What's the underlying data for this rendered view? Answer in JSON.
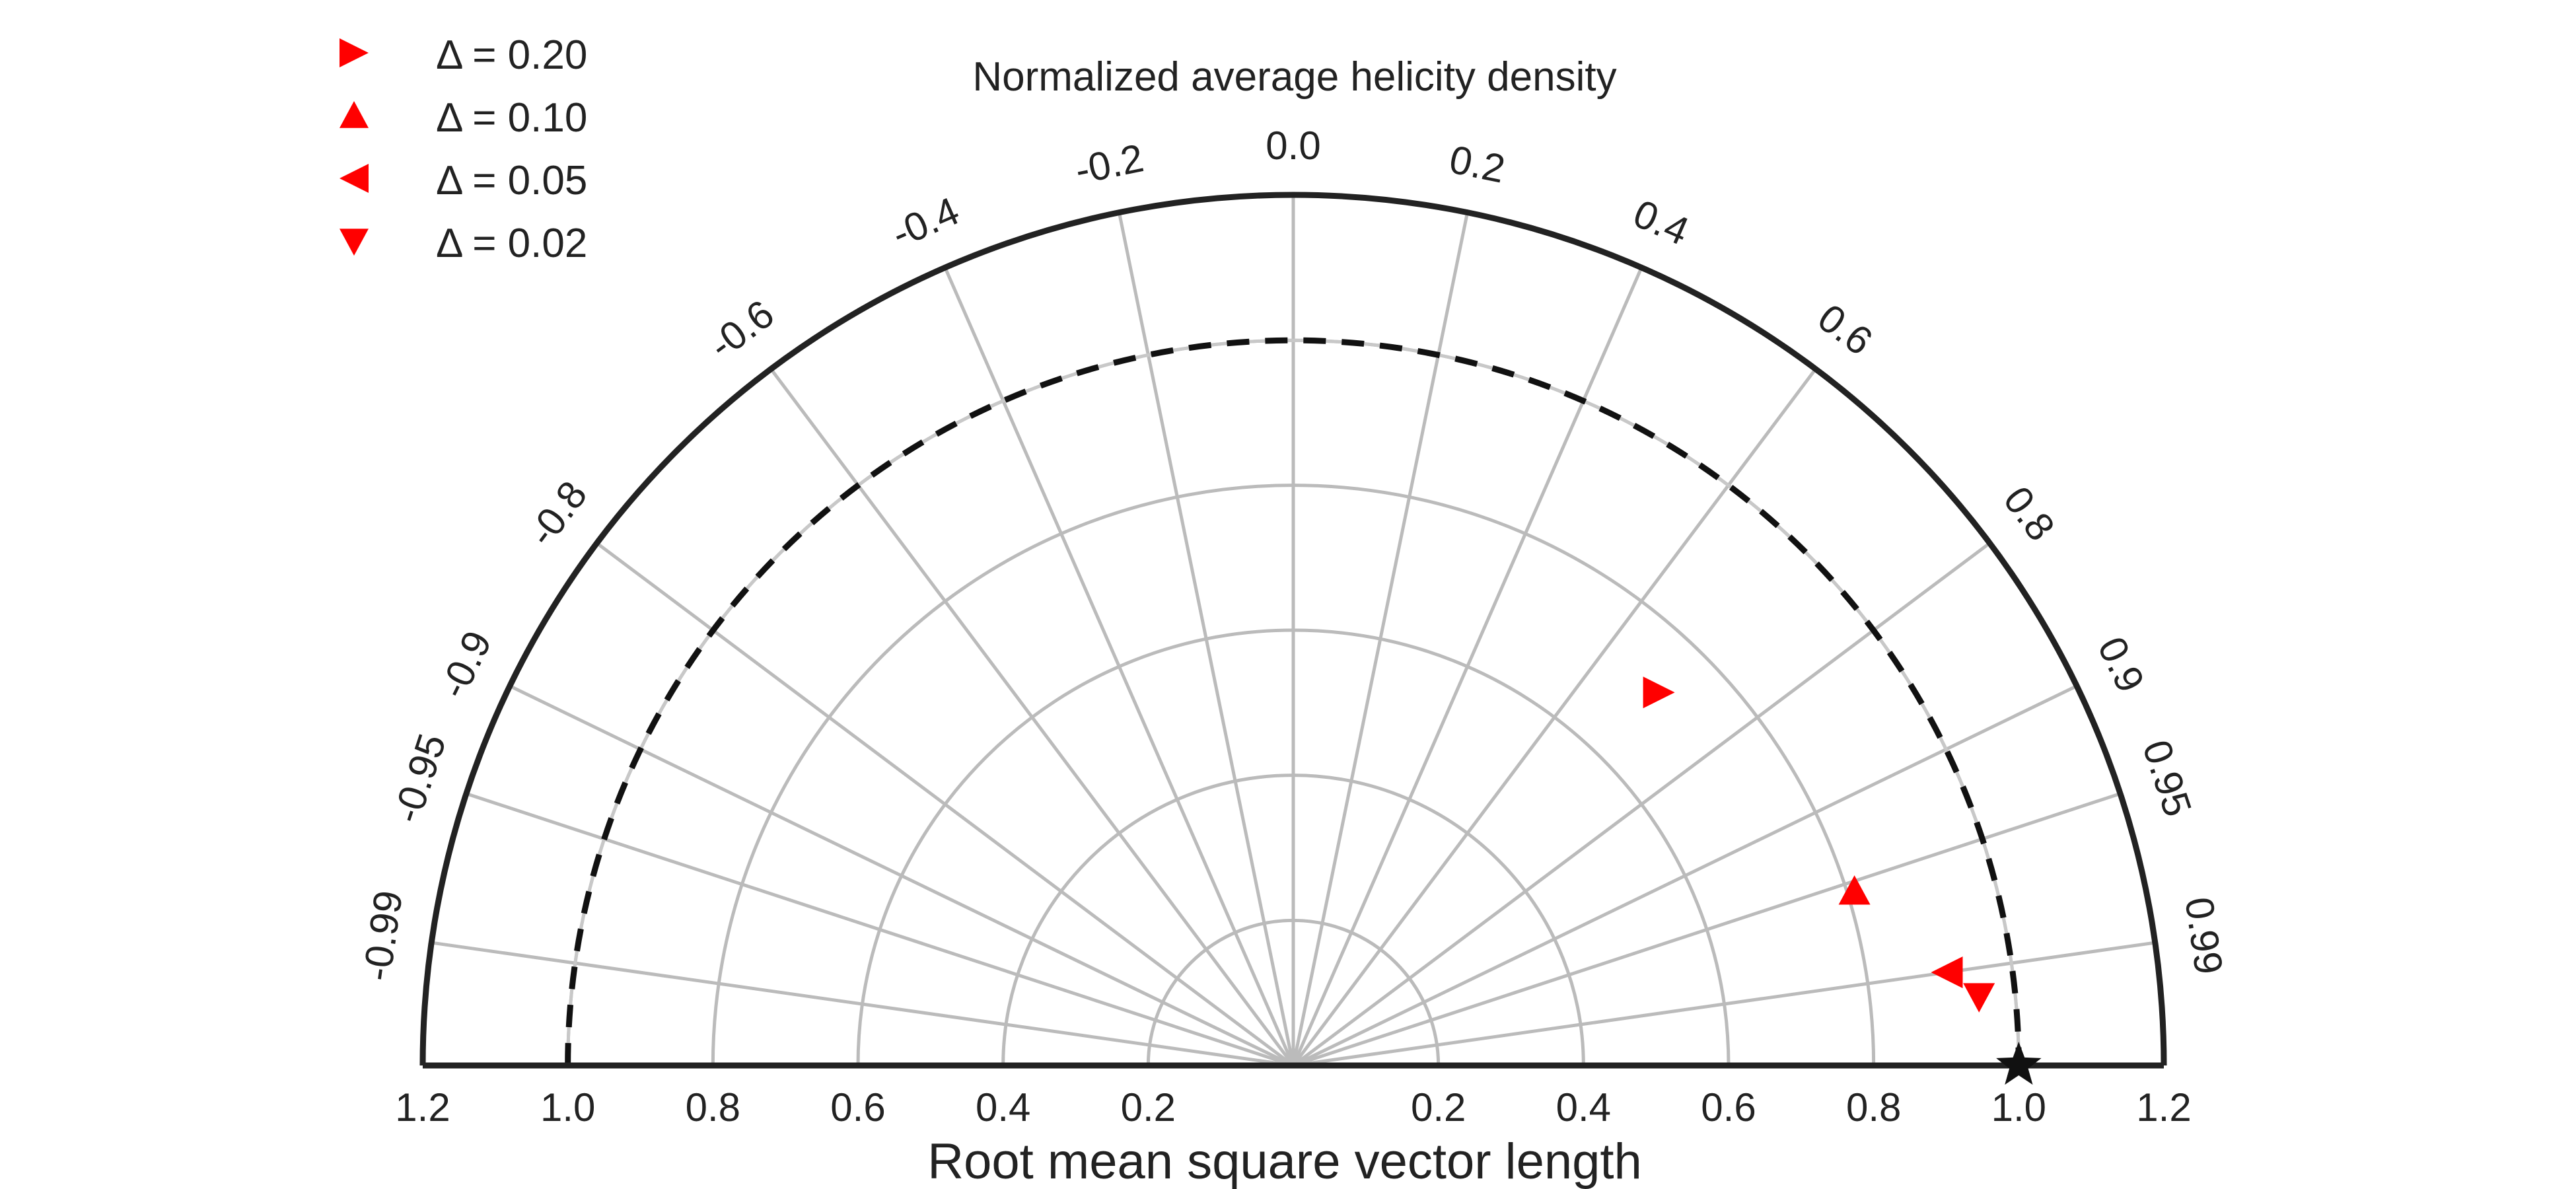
{
  "chart_data": {
    "type": "scatter",
    "subtype": "taylor-diagram-half",
    "title": "Normalized average helicity density",
    "xlabel": "Root mean square vector length",
    "radial_range": [
      0,
      1.2
    ],
    "radial_ticks": [
      "1.2",
      "1.0",
      "0.8",
      "0.6",
      "0.4",
      "0.2",
      "",
      "0.2",
      "0.4",
      "0.6",
      "0.8",
      "1.0",
      "1.2"
    ],
    "radial_tick_values": [
      -1.2,
      -1.0,
      -0.8,
      -0.6,
      -0.4,
      -0.2,
      0,
      0.2,
      0.4,
      0.6,
      0.8,
      1.0,
      1.2
    ],
    "angular_ticks": [
      {
        "value": -0.99,
        "label": "-0.99"
      },
      {
        "value": -0.95,
        "label": "-0.95"
      },
      {
        "value": -0.9,
        "label": "-0.9"
      },
      {
        "value": -0.8,
        "label": "-0.8"
      },
      {
        "value": -0.6,
        "label": "-0.6"
      },
      {
        "value": -0.4,
        "label": "-0.4"
      },
      {
        "value": -0.2,
        "label": "-0.2"
      },
      {
        "value": 0.0,
        "label": "0.0"
      },
      {
        "value": 0.2,
        "label": "0.2"
      },
      {
        "value": 0.4,
        "label": "0.4"
      },
      {
        "value": 0.6,
        "label": "0.6"
      },
      {
        "value": 0.8,
        "label": "0.8"
      },
      {
        "value": 0.9,
        "label": "0.9"
      },
      {
        "value": 0.95,
        "label": "0.95"
      },
      {
        "value": 0.99,
        "label": "0.99"
      }
    ],
    "reference_radius": 1.0,
    "reference_point": {
      "r": 1.0,
      "corr": 1.0,
      "marker": "star",
      "color": "#111111"
    },
    "legend_position": "top-left",
    "series": [
      {
        "name": "Δ = 0.20",
        "marker": "triangle-right",
        "color": "#ff0000",
        "r": 0.72,
        "corr": 0.7
      },
      {
        "name": "Δ = 0.10",
        "marker": "triangle-up",
        "color": "#ff0000",
        "r": 0.81,
        "corr": 0.955
      },
      {
        "name": "Δ = 0.05",
        "marker": "triangle-left",
        "color": "#ff0000",
        "r": 0.91,
        "corr": 0.99
      },
      {
        "name": "Δ = 0.02",
        "marker": "triangle-down",
        "color": "#ff0000",
        "r": 0.95,
        "corr": 0.995
      }
    ],
    "grid": true,
    "colors": {
      "grid": "#bbbbbb",
      "frame": "#222222",
      "reference_arc": "#111111"
    }
  }
}
